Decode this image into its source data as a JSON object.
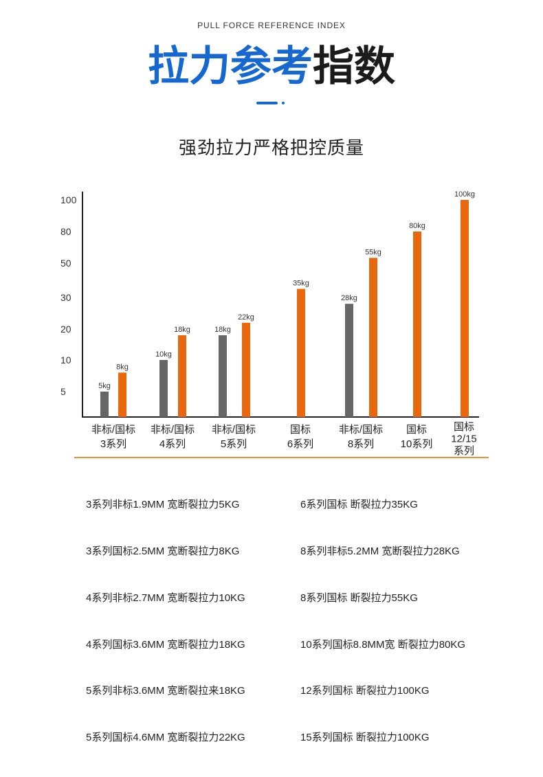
{
  "header": {
    "subtitle_en": "PULL FORCE REFERENCE INDEX",
    "title_blue": "拉力参考",
    "title_dark": "指数",
    "tagline": "强劲拉力严格把控质量"
  },
  "colors": {
    "title_blue": "#1668d0",
    "title_dark": "#1b1b1b",
    "deco": "#1668d0",
    "divider": "#f0903c"
  },
  "chart_data": {
    "type": "bar",
    "category_lines": [
      [
        "非标/国标",
        "3系列"
      ],
      [
        "非标/国标",
        "4系列"
      ],
      [
        "非标/国标",
        "5系列"
      ],
      [
        "国标",
        "6系列"
      ],
      [
        "非标/国标",
        "8系列"
      ],
      [
        "国标",
        "10系列"
      ],
      [
        "国标",
        "12/15",
        "系列"
      ]
    ],
    "series": [
      {
        "color": "#666666",
        "values": [
          5,
          10,
          18,
          null,
          28,
          null,
          null
        ],
        "labels": [
          "5kg",
          "10kg",
          "18kg",
          null,
          "28kg",
          null,
          null
        ]
      },
      {
        "color": "#e9680d",
        "values": [
          8,
          18,
          22,
          35,
          55,
          80,
          100
        ],
        "labels": [
          "8kg",
          "18kg",
          "22kg",
          "35kg",
          "55kg",
          "80kg",
          "100kg"
        ]
      }
    ],
    "yticks": [
      100,
      80,
      50,
      30,
      20,
      10,
      5
    ],
    "ylim": [
      0,
      100
    ],
    "xlabel": "",
    "ylabel": ""
  },
  "specs": {
    "left": [
      "3系列非标1.9MM 宽断裂拉力5KG",
      "3系列国标2.5MM 宽断裂拉力8KG",
      "4系列非标2.7MM 宽断裂拉力10KG",
      "4系列国标3.6MM 宽断裂拉力18KG",
      "5系列非标3.6MM 宽断裂拉来18KG",
      "5系列国标4.6MM 宽断裂拉力22KG"
    ],
    "right": [
      "6系列国标 断裂拉力35KG",
      "8系列非标5.2MM 宽断裂拉力28KG",
      "8系列国标 断裂拉力55KG",
      "10系列国标8.8MM宽 断裂拉力80KG",
      "12系列国标 断裂拉力100KG",
      "15系列国标 断裂拉力100KG"
    ]
  }
}
